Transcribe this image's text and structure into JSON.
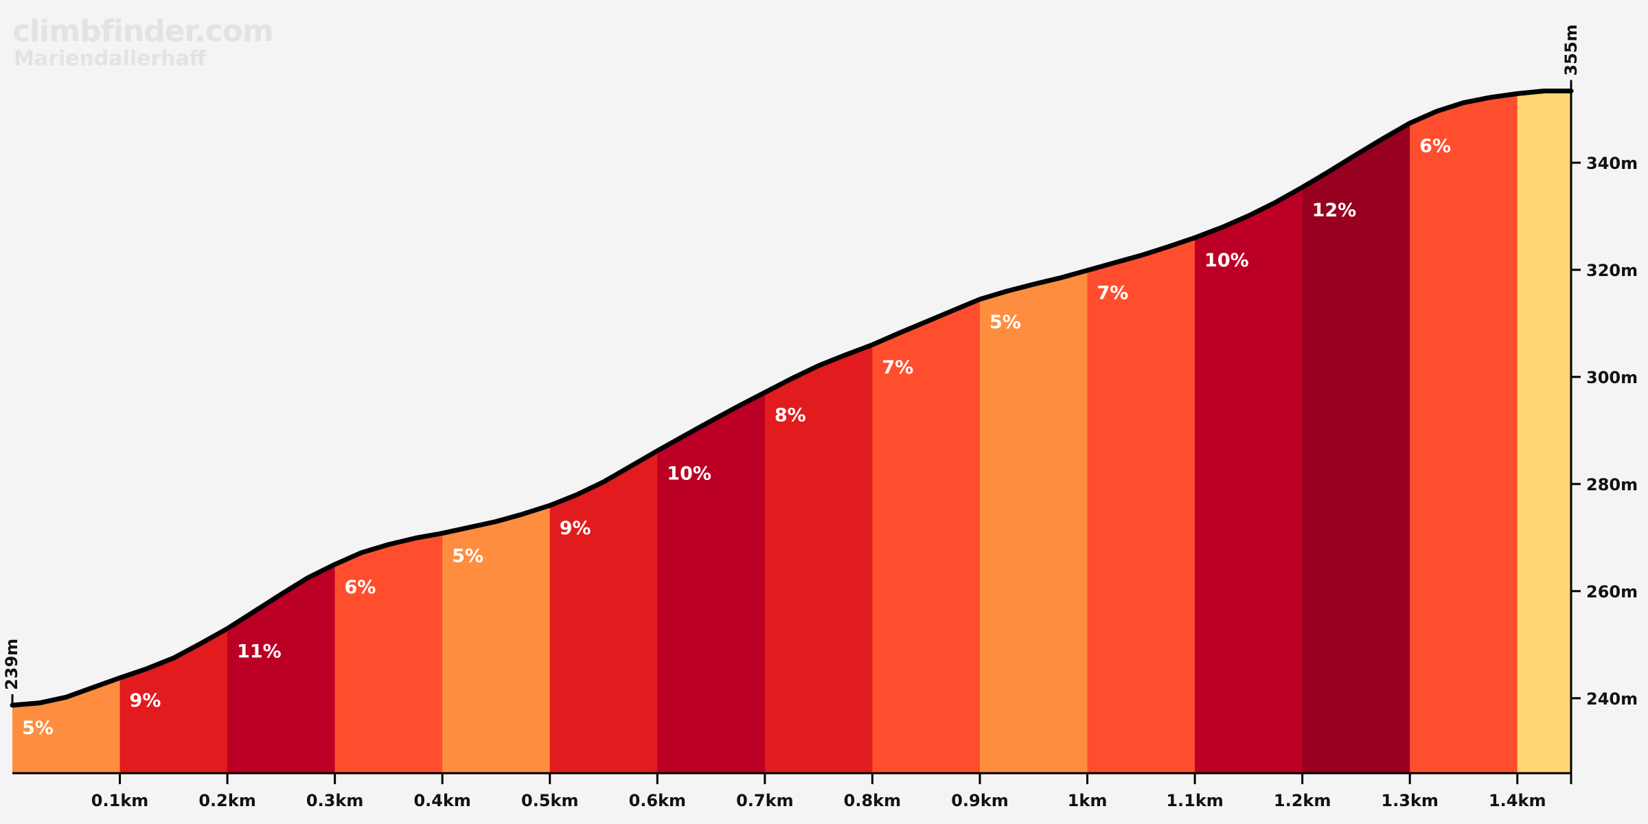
{
  "branding": {
    "site": "climbfinder.com",
    "climb_name": "Mariendallerhaff"
  },
  "chart_data": {
    "type": "area",
    "title": "",
    "xlabel": "",
    "ylabel": "",
    "x_unit": "km",
    "y_unit": "m",
    "xlim": [
      0,
      1.45
    ],
    "ylim": [
      226,
      355
    ],
    "start_elevation_label": "239m",
    "end_elevation_label": "355m",
    "x_ticks": [
      {
        "value": 0.1,
        "label": "0.1km"
      },
      {
        "value": 0.2,
        "label": "0.2km"
      },
      {
        "value": 0.3,
        "label": "0.3km"
      },
      {
        "value": 0.4,
        "label": "0.4km"
      },
      {
        "value": 0.5,
        "label": "0.5km"
      },
      {
        "value": 0.6,
        "label": "0.6km"
      },
      {
        "value": 0.7,
        "label": "0.7km"
      },
      {
        "value": 0.8,
        "label": "0.8km"
      },
      {
        "value": 0.9,
        "label": "0.9km"
      },
      {
        "value": 1.0,
        "label": "1km"
      },
      {
        "value": 1.1,
        "label": "1.1km"
      },
      {
        "value": 1.2,
        "label": "1.2km"
      },
      {
        "value": 1.3,
        "label": "1.3km"
      },
      {
        "value": 1.4,
        "label": "1.4km"
      }
    ],
    "y_ticks": [
      {
        "value": 240,
        "label": "240m"
      },
      {
        "value": 260,
        "label": "260m"
      },
      {
        "value": 280,
        "label": "280m"
      },
      {
        "value": 300,
        "label": "300m"
      },
      {
        "value": 320,
        "label": "320m"
      },
      {
        "value": 340,
        "label": "340m"
      }
    ],
    "profile": [
      [
        0.0,
        238.7
      ],
      [
        0.025,
        239.1
      ],
      [
        0.05,
        240.2
      ],
      [
        0.075,
        242.0
      ],
      [
        0.1,
        243.8
      ],
      [
        0.125,
        245.5
      ],
      [
        0.15,
        247.5
      ],
      [
        0.175,
        250.2
      ],
      [
        0.2,
        253.0
      ],
      [
        0.225,
        256.2
      ],
      [
        0.25,
        259.4
      ],
      [
        0.275,
        262.5
      ],
      [
        0.3,
        265.0
      ],
      [
        0.325,
        267.2
      ],
      [
        0.35,
        268.7
      ],
      [
        0.375,
        269.9
      ],
      [
        0.4,
        270.8
      ],
      [
        0.425,
        271.9
      ],
      [
        0.45,
        273.0
      ],
      [
        0.475,
        274.4
      ],
      [
        0.5,
        276.0
      ],
      [
        0.525,
        278.0
      ],
      [
        0.55,
        280.4
      ],
      [
        0.575,
        283.3
      ],
      [
        0.6,
        286.2
      ],
      [
        0.625,
        289.0
      ],
      [
        0.65,
        291.8
      ],
      [
        0.675,
        294.5
      ],
      [
        0.7,
        297.1
      ],
      [
        0.725,
        299.7
      ],
      [
        0.75,
        302.1
      ],
      [
        0.775,
        304.1
      ],
      [
        0.8,
        306.0
      ],
      [
        0.825,
        308.2
      ],
      [
        0.85,
        310.3
      ],
      [
        0.875,
        312.4
      ],
      [
        0.9,
        314.5
      ],
      [
        0.925,
        316.0
      ],
      [
        0.95,
        317.3
      ],
      [
        0.975,
        318.5
      ],
      [
        1.0,
        319.9
      ],
      [
        1.025,
        321.3
      ],
      [
        1.05,
        322.7
      ],
      [
        1.075,
        324.3
      ],
      [
        1.1,
        326.0
      ],
      [
        1.125,
        327.9
      ],
      [
        1.15,
        330.1
      ],
      [
        1.175,
        332.6
      ],
      [
        1.2,
        335.4
      ],
      [
        1.225,
        338.4
      ],
      [
        1.25,
        341.5
      ],
      [
        1.275,
        344.5
      ],
      [
        1.3,
        347.4
      ],
      [
        1.325,
        349.6
      ],
      [
        1.35,
        351.2
      ],
      [
        1.375,
        352.2
      ],
      [
        1.4,
        352.9
      ],
      [
        1.425,
        353.4
      ],
      [
        1.45,
        353.4
      ]
    ],
    "segments": [
      {
        "start": 0.0,
        "end": 0.1,
        "grade": "5%",
        "color": "#ff8d3f"
      },
      {
        "start": 0.1,
        "end": 0.2,
        "grade": "9%",
        "color": "#e11b1e"
      },
      {
        "start": 0.2,
        "end": 0.3,
        "grade": "11%",
        "color": "#bc0025"
      },
      {
        "start": 0.3,
        "end": 0.4,
        "grade": "6%",
        "color": "#ff4e2d"
      },
      {
        "start": 0.4,
        "end": 0.5,
        "grade": "5%",
        "color": "#ff8d3f"
      },
      {
        "start": 0.5,
        "end": 0.6,
        "grade": "9%",
        "color": "#e11b1e"
      },
      {
        "start": 0.6,
        "end": 0.7,
        "grade": "10%",
        "color": "#bc0025"
      },
      {
        "start": 0.7,
        "end": 0.8,
        "grade": "8%",
        "color": "#e11b1e"
      },
      {
        "start": 0.8,
        "end": 0.9,
        "grade": "7%",
        "color": "#ff4e2d"
      },
      {
        "start": 0.9,
        "end": 1.0,
        "grade": "5%",
        "color": "#ff8d3f"
      },
      {
        "start": 1.0,
        "end": 1.1,
        "grade": "7%",
        "color": "#ff4e2d"
      },
      {
        "start": 1.1,
        "end": 1.2,
        "grade": "10%",
        "color": "#bc0025"
      },
      {
        "start": 1.2,
        "end": 1.3,
        "grade": "12%",
        "color": "#980020"
      },
      {
        "start": 1.3,
        "end": 1.4,
        "grade": "6%",
        "color": "#ff4e2d"
      },
      {
        "start": 1.4,
        "end": 1.45,
        "grade": "",
        "color": "#ffd673"
      }
    ],
    "line_color": "#000000",
    "background_color": "#f4f4f4"
  }
}
